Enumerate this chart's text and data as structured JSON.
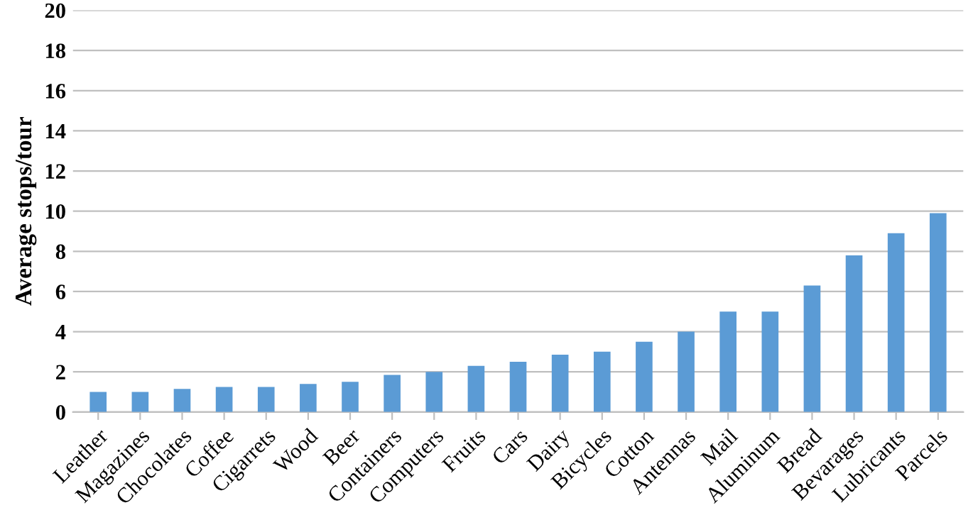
{
  "chart_data": {
    "type": "bar",
    "ylabel": "Average stops/tour",
    "categories": [
      "Leather",
      "Magazines",
      "Chocolates",
      "Coffee",
      "Cigarrets",
      "Wood",
      "Beer",
      "Containers",
      "Computers",
      "Fruits",
      "Cars",
      "Dairy",
      "Bicycles",
      "Cotton",
      "Antennas",
      "Mail",
      "Aluminum",
      "Bread",
      "Bevarages",
      "Lubricants",
      "Parcels"
    ],
    "values": [
      1.0,
      1.0,
      1.15,
      1.25,
      1.25,
      1.4,
      1.5,
      1.85,
      2.0,
      2.3,
      2.5,
      2.85,
      3.0,
      3.5,
      4.0,
      5.0,
      5.0,
      6.3,
      7.8,
      8.9,
      9.9
    ],
    "color": "#5b9bd5",
    "ylim": [
      0,
      20
    ],
    "yticks": [
      0,
      2,
      4,
      6,
      8,
      10,
      12,
      14,
      16,
      18,
      20
    ],
    "grid": "y",
    "legend": false
  }
}
